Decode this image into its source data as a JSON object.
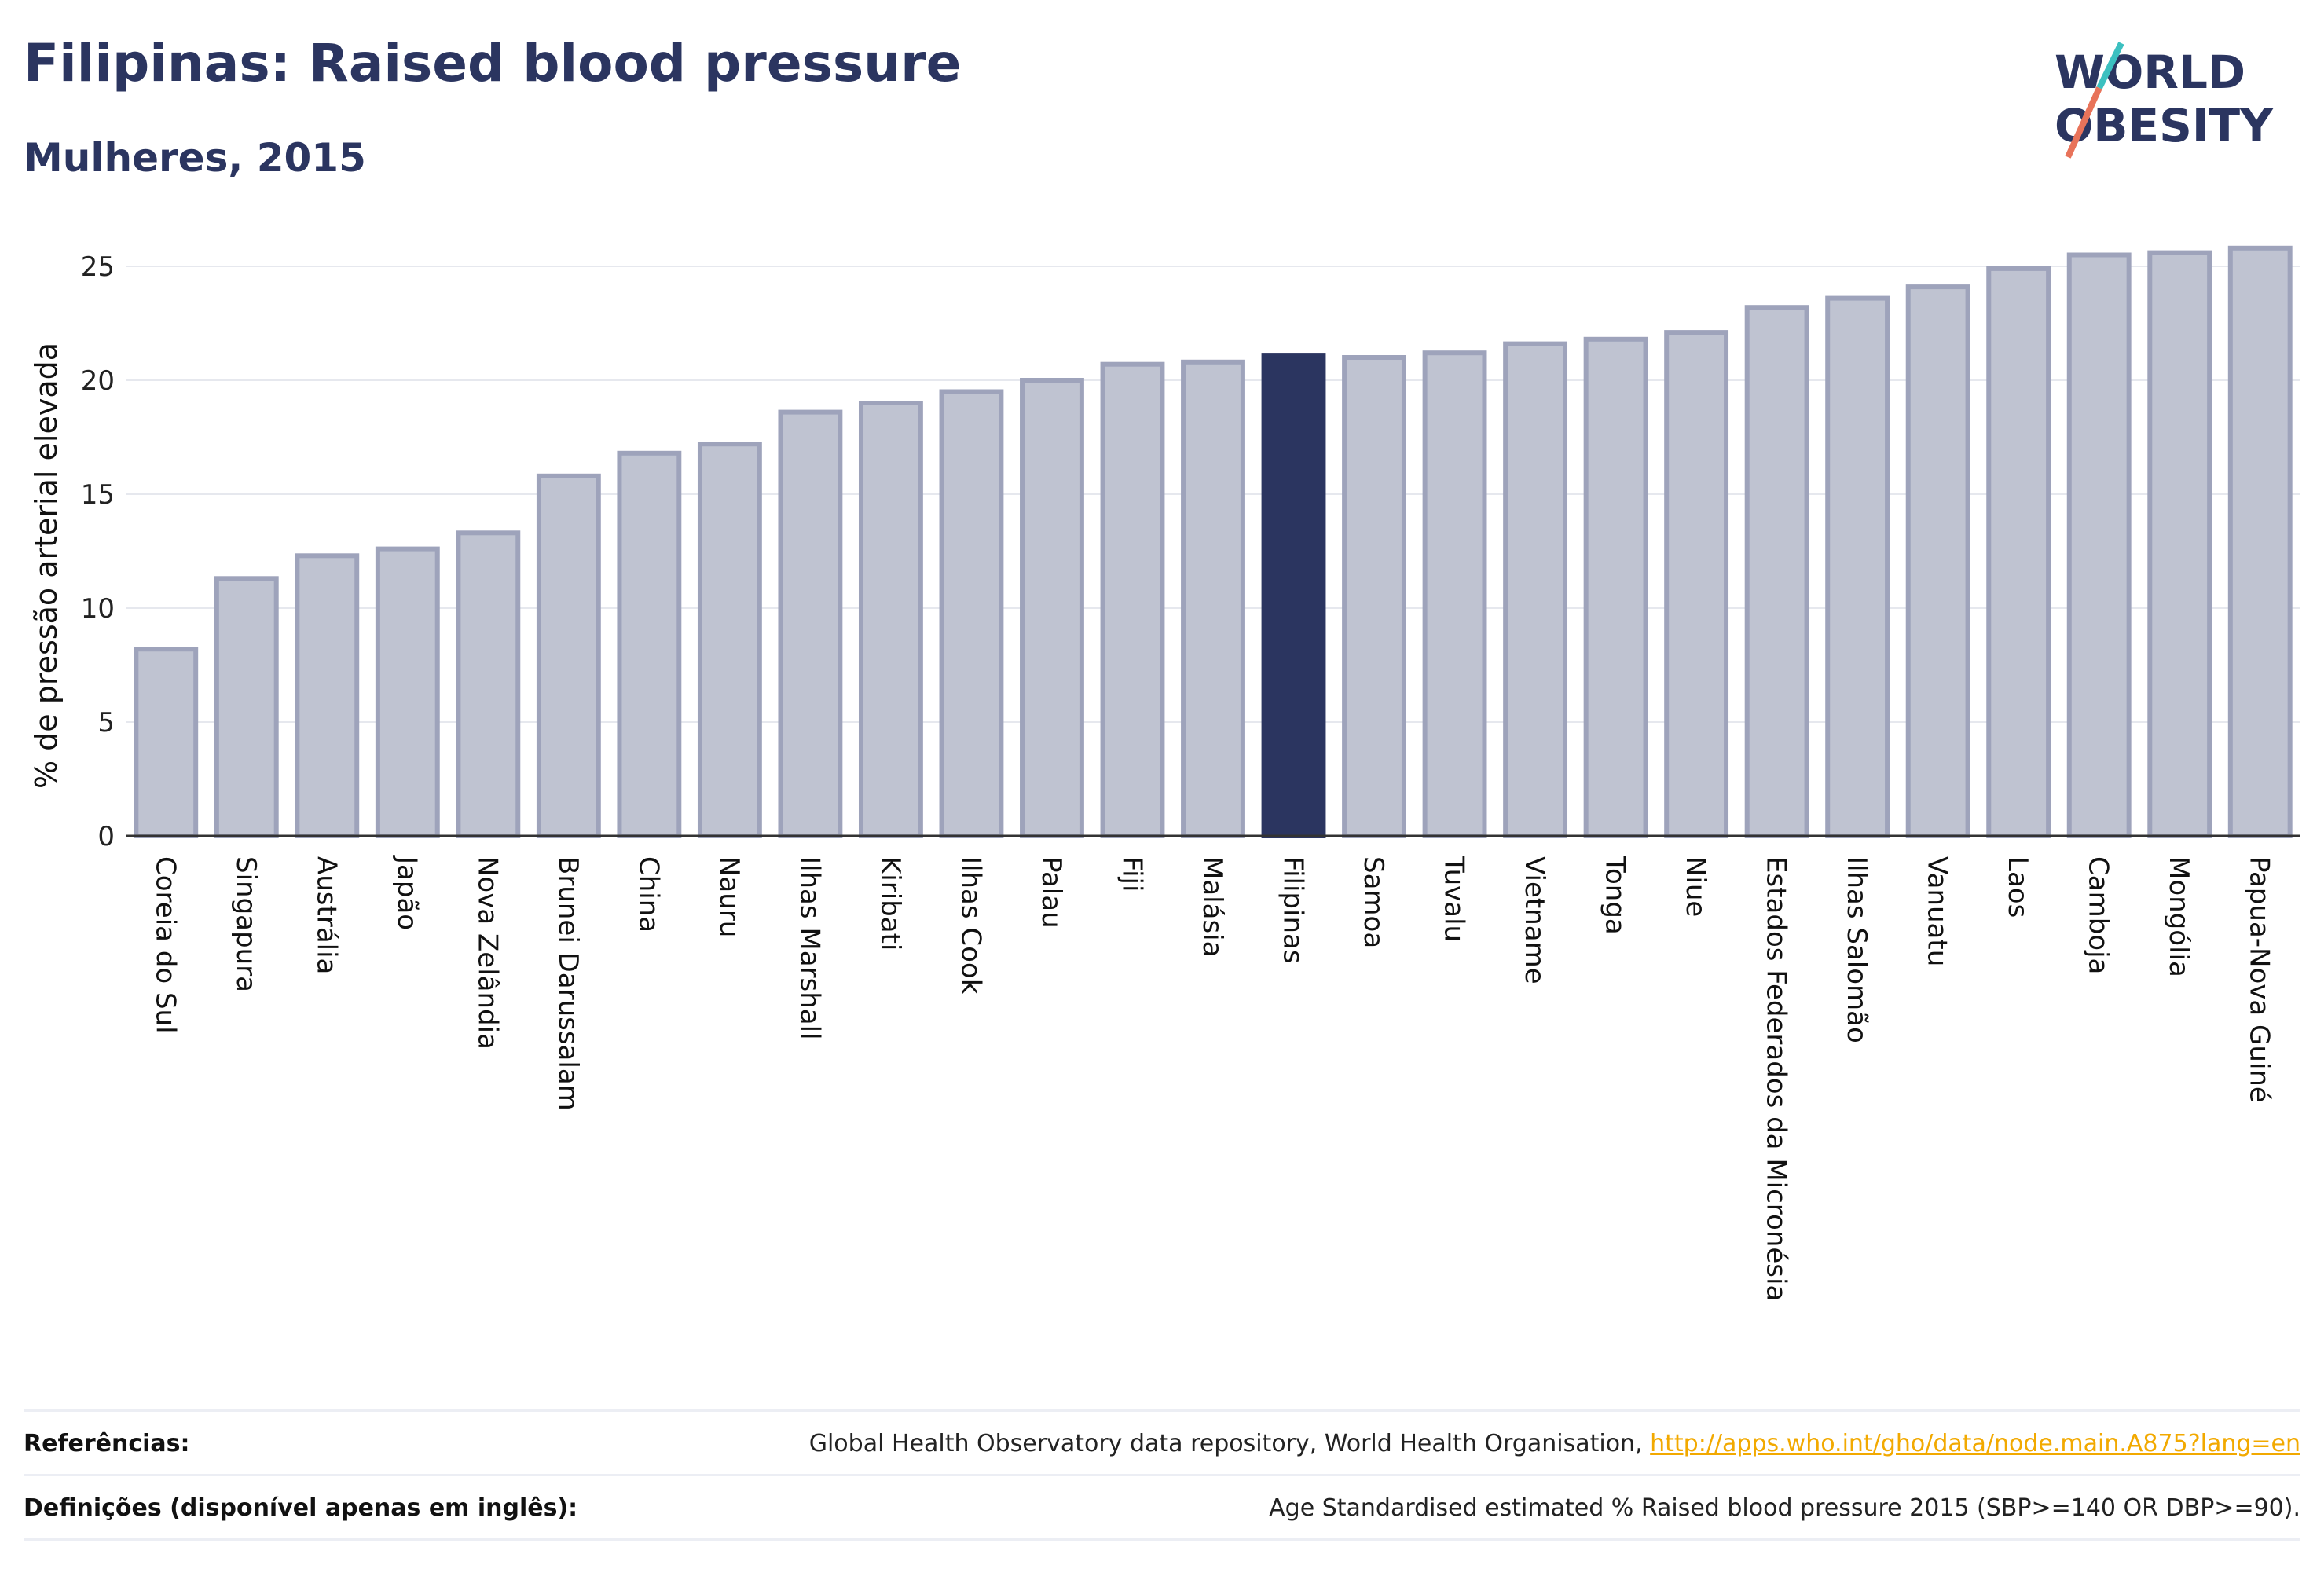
{
  "header": {
    "title": "Filipinas: Raised blood pressure",
    "subtitle": "Mulheres, 2015"
  },
  "logo": {
    "line1": "WORLD",
    "line2": "OBESITY"
  },
  "colors": {
    "highlight": "#2b3560",
    "bar_fill": "#bfc3d1",
    "bar_stroke": "#9ea3bb",
    "text_dark": "#2b3560",
    "link": "#f2a900"
  },
  "chart_data": {
    "type": "bar",
    "ylabel": "% de pressão arterial elevada",
    "ylim": [
      0,
      26
    ],
    "yticks": [
      0,
      5,
      10,
      15,
      20,
      25
    ],
    "grid": true,
    "highlight": "Filipinas",
    "categories": [
      "Coreia do Sul",
      "Singapura",
      "Austrália",
      "Japão",
      "Nova Zelândia",
      "Brunei Darussalam",
      "China",
      "Nauru",
      "Ilhas Marshall",
      "Kiribati",
      "Ilhas Cook",
      "Palau",
      "Fiji",
      "Malásia",
      "Filipinas",
      "Samoa",
      "Tuvalu",
      "Vietname",
      "Tonga",
      "Niue",
      "Estados Federados da Micronésia",
      "Ilhas Salomão",
      "Vanuatu",
      "Laos",
      "Camboja",
      "Mongólia",
      "Papua-Nova Guiné"
    ],
    "values": [
      8.2,
      11.3,
      12.3,
      12.6,
      13.3,
      15.8,
      16.8,
      17.2,
      18.6,
      19.0,
      19.5,
      20.0,
      20.7,
      20.8,
      21.1,
      21.0,
      21.2,
      21.6,
      21.8,
      22.1,
      23.2,
      23.6,
      24.1,
      24.9,
      25.5,
      25.6,
      25.8
    ]
  },
  "footer": {
    "references_label": "Referências:",
    "references_text": "Global Health Observatory data repository, World Health Organisation, ",
    "references_link": "http://apps.who.int/gho/data/node.main.A875?lang=en",
    "definitions_label": "Definições (disponível apenas em inglês):",
    "definitions_text": "Age Standardised estimated % Raised blood pressure 2015 (SBP>=140 OR DBP>=90)."
  }
}
